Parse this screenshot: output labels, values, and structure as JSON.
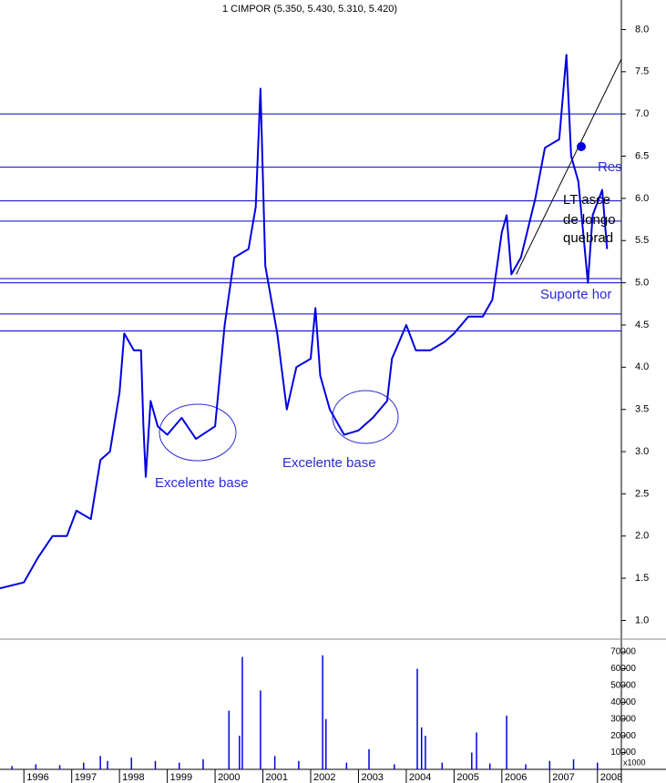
{
  "chart_data": [
    {
      "type": "line",
      "title": "1 CIMPOR (5.350, 5.430, 5.310, 5.420)",
      "x": [
        1995.5,
        1996.0,
        1996.3,
        1996.6,
        1996.9,
        1997.1,
        1997.4,
        1997.6,
        1997.8,
        1998.0,
        1998.1,
        1998.3,
        1998.45,
        1998.5,
        1998.55,
        1998.65,
        1998.8,
        1999.0,
        1999.3,
        1999.6,
        2000.0,
        2000.2,
        2000.4,
        2000.7,
        2000.85,
        2000.95,
        2001.05,
        2001.3,
        2001.5,
        2001.7,
        2002.0,
        2002.1,
        2002.2,
        2002.4,
        2002.7,
        2003.0,
        2003.3,
        2003.6,
        2003.7,
        2004.0,
        2004.2,
        2004.5,
        2004.8,
        2005.0,
        2005.3,
        2005.6,
        2005.8,
        2006.0,
        2006.1,
        2006.2,
        2006.4,
        2006.7,
        2006.9,
        2007.2,
        2007.35,
        2007.45,
        2007.6,
        2007.8,
        2007.9,
        2008.1,
        2008.2
      ],
      "series": [
        {
          "color": "#0000e0",
          "values": [
            1.38,
            1.45,
            1.75,
            2.0,
            2.0,
            2.3,
            2.2,
            2.9,
            3.0,
            3.7,
            4.4,
            4.2,
            4.2,
            3.3,
            2.7,
            3.6,
            3.3,
            3.2,
            3.4,
            3.15,
            3.3,
            4.5,
            5.3,
            5.4,
            5.9,
            7.3,
            5.2,
            4.4,
            3.5,
            4.0,
            4.1,
            4.7,
            3.9,
            3.5,
            3.2,
            3.25,
            3.4,
            3.6,
            4.1,
            4.5,
            4.2,
            4.2,
            4.3,
            4.4,
            4.6,
            4.6,
            4.8,
            5.6,
            5.8,
            5.1,
            5.3,
            6.0,
            6.6,
            6.7,
            7.7,
            6.5,
            6.2,
            5.0,
            5.8,
            6.1,
            5.4
          ]
        }
      ],
      "xlim": [
        1995.5,
        2008.5
      ],
      "xticks": [
        1996,
        1997,
        1998,
        1999,
        2000,
        2001,
        2002,
        2003,
        2004,
        2005,
        2006,
        2007,
        2008
      ],
      "ylim": [
        0.8,
        8.35
      ],
      "yticks": [
        {
          "value": 1,
          "label": "1.0"
        },
        1.5,
        {
          "value": 2,
          "label": "2.0"
        },
        2.5,
        {
          "value": 3,
          "label": "3.0"
        },
        3.5,
        {
          "value": 4,
          "label": "4.0"
        },
        4.5,
        {
          "value": 5,
          "label": "5.0"
        },
        5.5,
        {
          "value": 6,
          "label": "6.0"
        },
        6.5,
        {
          "value": 7,
          "label": "7.0"
        },
        7.5,
        {
          "value": 8,
          "label": "8.0"
        }
      ],
      "hlines": [
        7.0,
        6.37,
        5.97,
        5.73,
        5.05,
        5.0,
        4.63,
        4.43
      ],
      "hline_color": "#0000cc",
      "trendline": {
        "x": [
          2006.3,
          2008.5
        ],
        "values": [
          5.1,
          7.65
        ]
      },
      "annotations": [
        "Excelente base",
        "Excelente base",
        "Res",
        "LT asce",
        "de longo",
        "quebrad",
        "Suporte hor"
      ]
    },
    {
      "type": "volume",
      "y_unit": "x1000",
      "x": [
        1995.75,
        1996.25,
        1996.75,
        1997.25,
        1997.6,
        1997.75,
        1998.25,
        1998.75,
        1999.25,
        1999.75,
        2000.29,
        2000.51,
        2000.57,
        2000.95,
        2001.25,
        2001.75,
        2002.25,
        2002.32,
        2002.75,
        2003.22,
        2003.75,
        2004.23,
        2004.32,
        2004.4,
        2004.75,
        2005.37,
        2005.47,
        2005.75,
        2006.1,
        2006.5,
        2007.0,
        2007.5,
        2008.0
      ],
      "values": [
        2000,
        3000,
        2500,
        4000,
        8000,
        5000,
        7000,
        5000,
        4000,
        6000,
        35000,
        20000,
        67000,
        47000,
        8000,
        5000,
        68000,
        30000,
        4000,
        12000,
        3000,
        60000,
        25000,
        20000,
        4000,
        10000,
        22000,
        3500,
        32000,
        3000,
        5000,
        6000,
        4000
      ],
      "color": "#0000e0",
      "ylim": [
        0,
        76000
      ],
      "yticks": [
        10000,
        20000,
        30000,
        40000,
        50000,
        60000,
        70000
      ]
    }
  ]
}
